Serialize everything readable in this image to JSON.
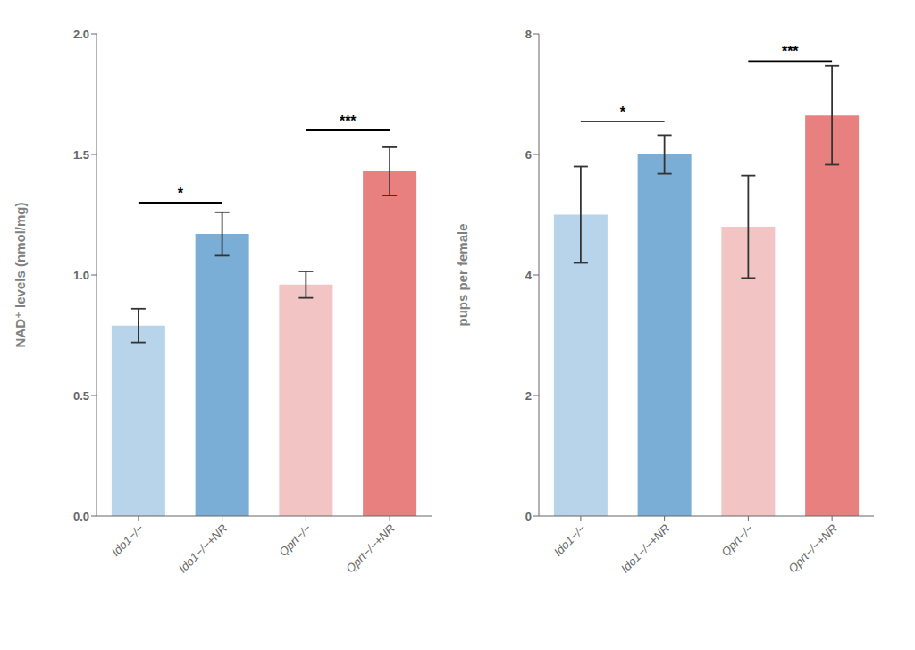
{
  "chart_data": [
    {
      "type": "bar",
      "ylabel": "NAD⁺ levels (nmol/mg)",
      "categories": [
        "Ido1−/−",
        "Ido1−/−+NR",
        "Qprt−/−",
        "Qprt−/−+NR"
      ],
      "values": [
        0.79,
        1.17,
        0.96,
        1.43
      ],
      "errors": [
        0.07,
        0.09,
        0.055,
        0.1
      ],
      "colors": [
        "#b8d4ea",
        "#7aaed6",
        "#f2c4c4",
        "#e88080"
      ],
      "ylim": [
        0,
        2.0
      ],
      "yticks": [
        {
          "value": 0,
          "label": "0.0"
        },
        0.5,
        {
          "value": 1,
          "label": "1.0"
        },
        1.5,
        {
          "value": 2,
          "label": "2.0"
        }
      ],
      "grid": false,
      "annotations": [
        {
          "text": "*",
          "x": [
            "Ido1−/−",
            "Ido1−/−+NR"
          ],
          "y": 1.3
        },
        {
          "text": "***",
          "x": [
            "Qprt−/−",
            "Qprt−/−+NR"
          ],
          "y": 1.6
        }
      ]
    },
    {
      "type": "bar",
      "ylabel": "pups per female",
      "categories": [
        "Ido1−/−",
        "Ido1−/−+NR",
        "Qprt−/−",
        "Qprt−/−+NR"
      ],
      "values": [
        5.0,
        6.0,
        4.8,
        6.65
      ],
      "errors": [
        0.8,
        0.32,
        0.85,
        0.82
      ],
      "colors": [
        "#b8d4ea",
        "#7aaed6",
        "#f2c4c4",
        "#e88080"
      ],
      "ylim": [
        0,
        8
      ],
      "yticks": [
        0,
        2,
        4,
        6,
        8
      ],
      "grid": false,
      "annotations": [
        {
          "text": "*",
          "x": [
            "Ido1−/−",
            "Ido1−/−+NR"
          ],
          "y": 6.55
        },
        {
          "text": "***",
          "x": [
            "Qprt−/−",
            "Qprt−/−+NR"
          ],
          "y": 7.55
        }
      ]
    }
  ]
}
